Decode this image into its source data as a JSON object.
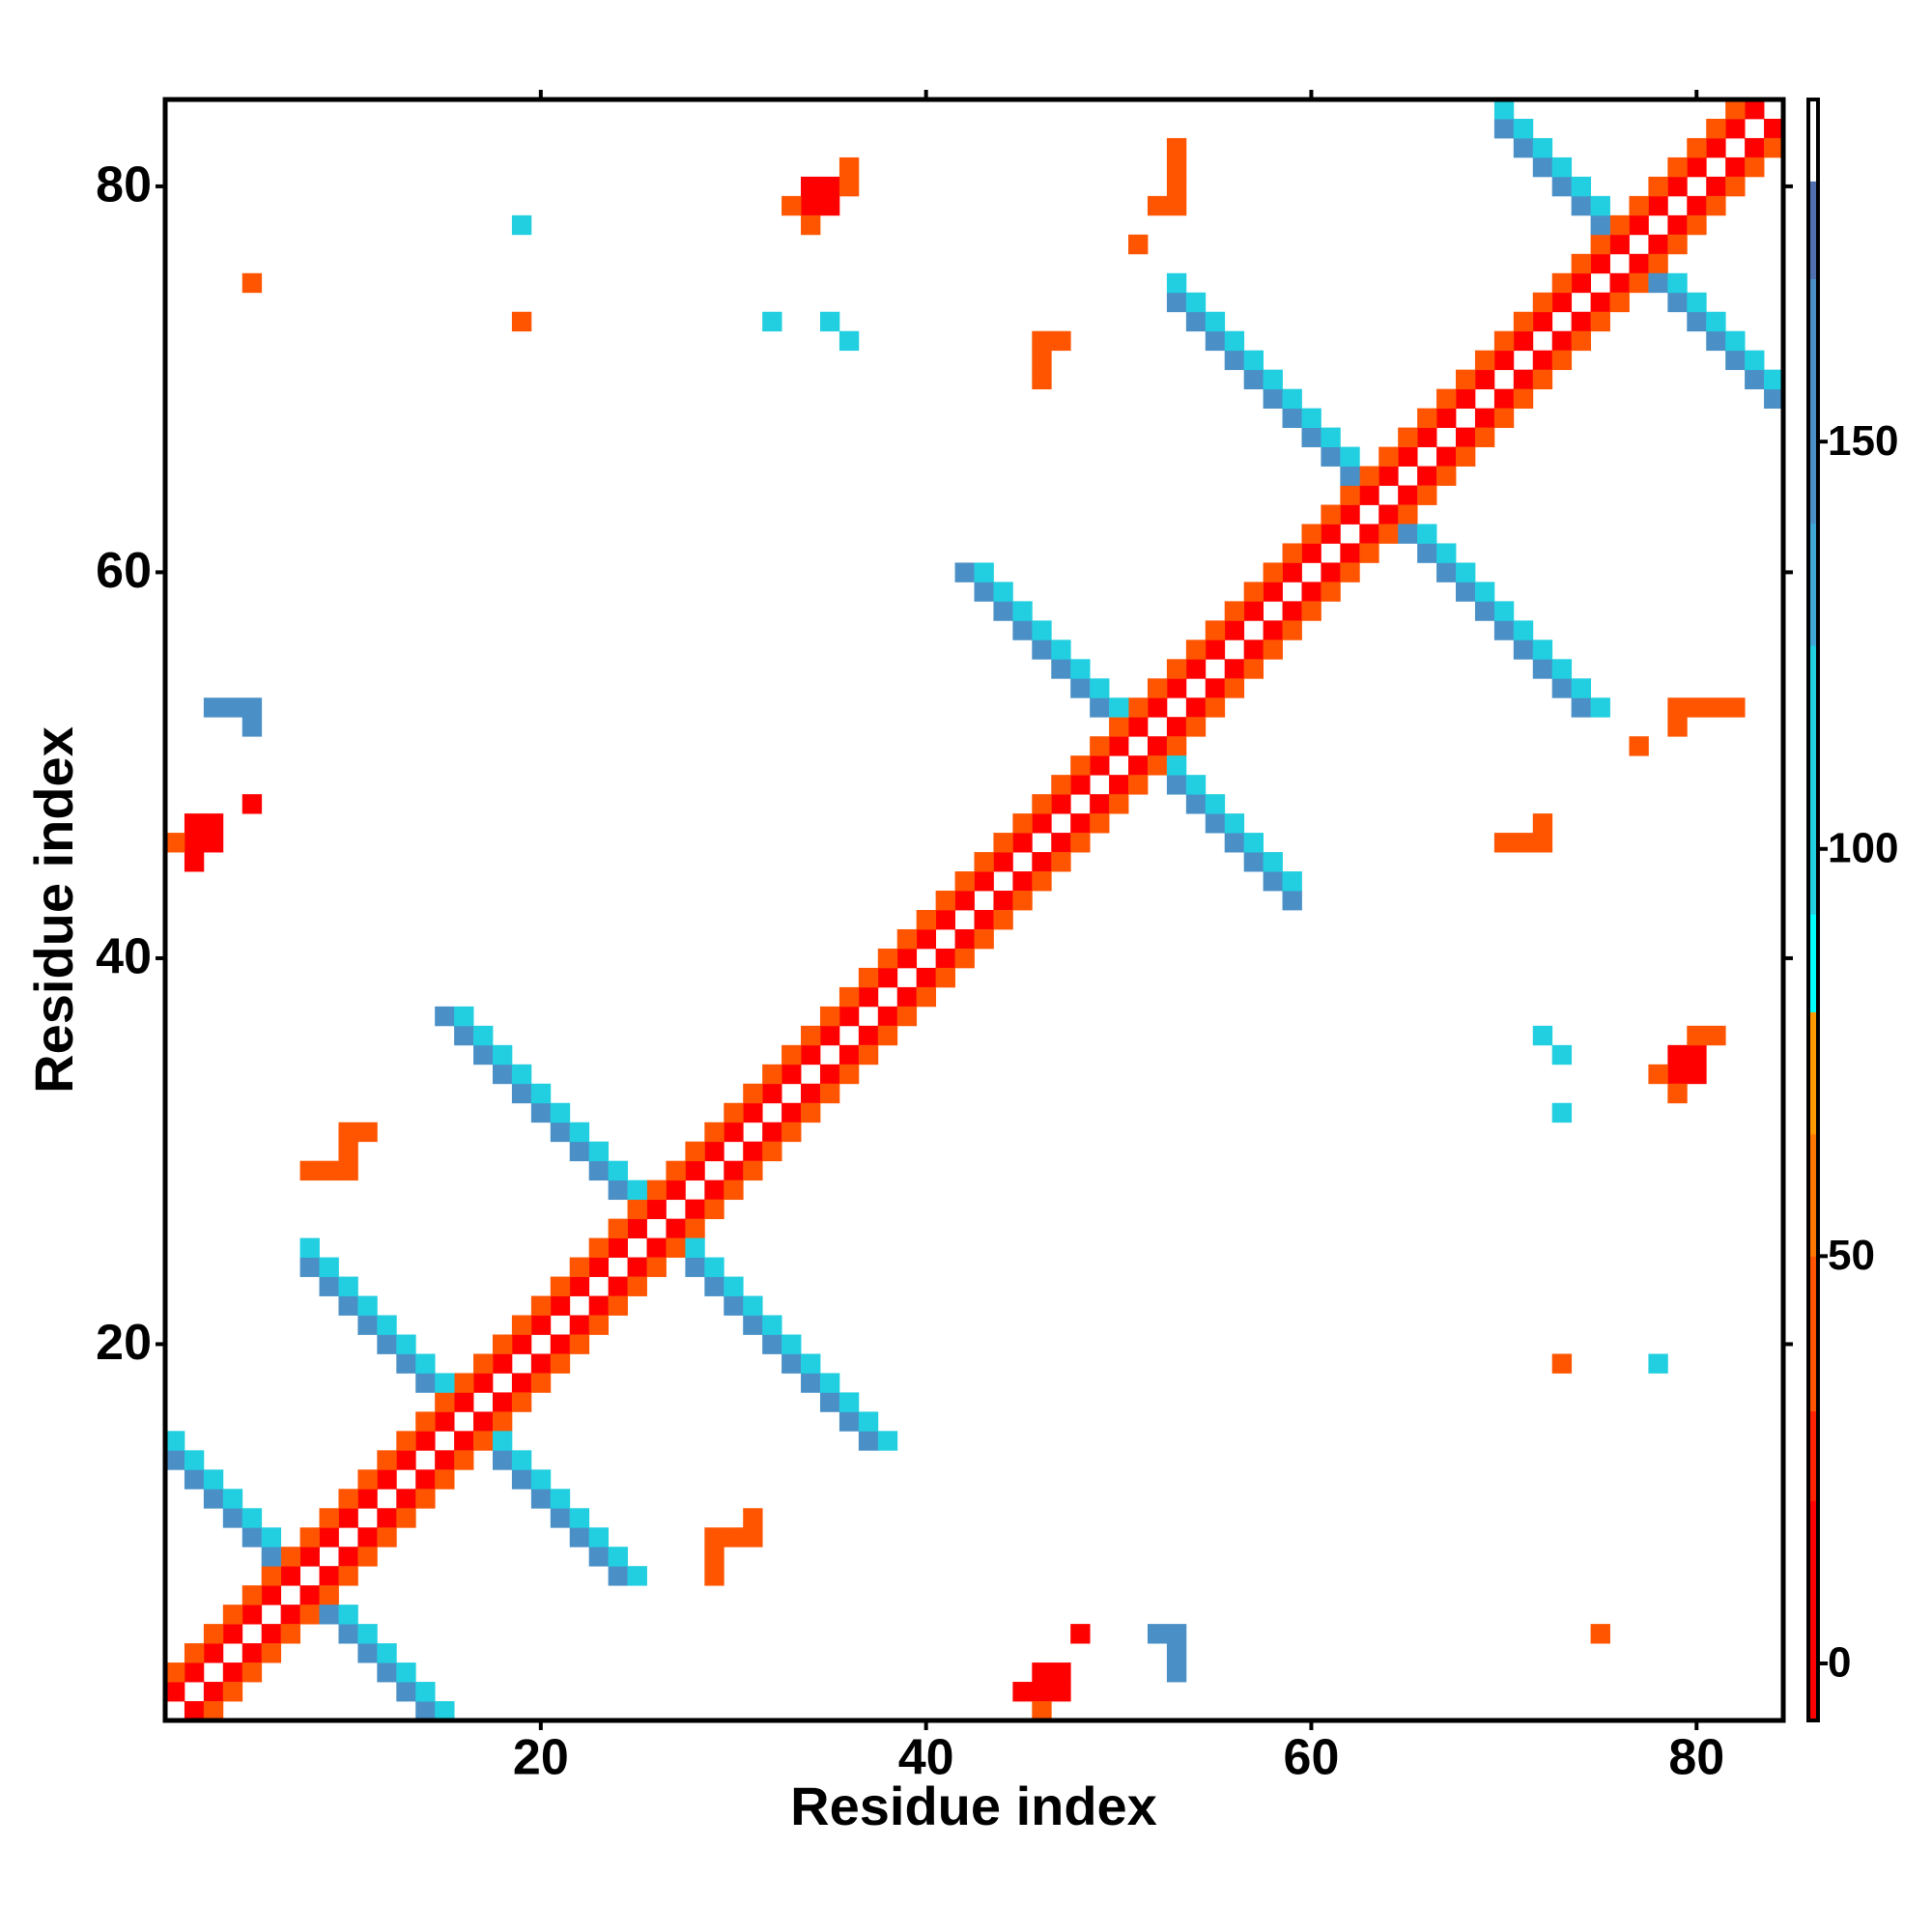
{
  "chart_data": {
    "type": "heatmap",
    "xlabel": "Residue index",
    "ylabel": "Residue index",
    "xlim": [
      0.5,
      84.5
    ],
    "ylim": [
      0.5,
      84.5
    ],
    "xticks": [
      20,
      40,
      60,
      80
    ],
    "yticks": [
      20,
      40,
      60,
      80
    ],
    "clim": [
      -7,
      192
    ],
    "cticks": [
      0,
      50,
      100,
      150
    ],
    "colorscale": [
      [
        -7,
        "#ff0000"
      ],
      [
        20,
        "#ff2200"
      ],
      [
        31,
        "#ff5500"
      ],
      [
        50,
        "#ff7700"
      ],
      [
        65,
        "#ff9900"
      ],
      [
        80,
        "#00ffff"
      ],
      [
        92,
        "#22cfe0"
      ],
      [
        125,
        "#3fa6d6"
      ],
      [
        140,
        "#4a90c6"
      ],
      [
        170,
        "#4f6fae"
      ],
      [
        182,
        "#ffffff"
      ]
    ],
    "cells": [
      {
        "value": 10,
        "x": [
          1,
          2,
          3,
          4,
          5,
          6,
          7,
          8,
          9,
          10,
          11,
          12,
          13,
          14,
          15,
          16,
          17,
          18,
          19,
          20,
          21,
          22,
          23,
          24,
          25,
          26,
          27,
          28,
          29,
          30,
          31,
          32,
          33,
          34,
          35,
          36,
          37,
          38,
          39,
          40,
          41,
          42,
          43,
          44,
          45,
          46,
          47,
          48,
          49,
          50,
          51,
          52,
          53,
          54,
          55,
          56,
          57,
          58,
          59,
          60,
          61,
          62,
          63,
          64,
          65,
          66,
          67,
          68,
          69,
          70,
          71,
          72,
          73,
          74,
          75,
          76,
          77,
          78,
          79,
          80,
          81,
          82,
          83,
          2,
          3,
          4,
          5,
          6,
          7,
          8,
          9,
          10,
          11,
          12,
          13,
          14,
          15,
          16,
          17,
          18,
          19,
          20,
          21,
          22,
          23,
          24,
          25,
          26,
          27,
          28,
          29,
          30,
          31,
          32,
          33,
          34,
          35,
          36,
          37,
          38,
          39,
          40,
          41,
          42,
          43,
          44,
          45,
          46,
          47,
          48,
          49,
          50,
          51,
          52,
          53,
          54,
          55,
          56,
          57,
          58,
          59,
          60,
          61,
          62,
          63,
          64,
          65,
          66,
          67,
          68,
          69,
          70,
          71,
          72,
          73,
          74,
          75,
          76,
          77,
          78,
          79,
          80,
          81,
          82,
          83,
          84,
          45,
          46,
          47,
          46,
          47,
          48,
          2,
          2,
          2,
          3,
          3,
          5,
          79,
          80,
          79,
          80,
          34,
          34,
          35,
          35
        ],
        "y": [
          2,
          3,
          4,
          5,
          6,
          7,
          8,
          9,
          10,
          11,
          12,
          13,
          14,
          15,
          16,
          17,
          18,
          19,
          20,
          21,
          22,
          23,
          24,
          25,
          26,
          27,
          28,
          29,
          30,
          31,
          32,
          33,
          34,
          35,
          36,
          37,
          38,
          39,
          40,
          41,
          42,
          43,
          44,
          45,
          46,
          47,
          48,
          49,
          50,
          51,
          52,
          53,
          54,
          55,
          56,
          57,
          58,
          59,
          60,
          61,
          62,
          63,
          64,
          65,
          66,
          67,
          68,
          69,
          70,
          71,
          72,
          73,
          74,
          75,
          76,
          77,
          78,
          79,
          80,
          81,
          82,
          83,
          84,
          1,
          2,
          3,
          4,
          5,
          6,
          7,
          8,
          9,
          10,
          11,
          12,
          13,
          14,
          15,
          16,
          17,
          18,
          19,
          20,
          21,
          22,
          23,
          24,
          25,
          26,
          27,
          28,
          29,
          30,
          31,
          32,
          33,
          34,
          35,
          36,
          37,
          38,
          39,
          40,
          41,
          42,
          43,
          44,
          45,
          46,
          47,
          48,
          49,
          50,
          51,
          52,
          53,
          54,
          55,
          56,
          57,
          58,
          59,
          60,
          61,
          62,
          63,
          64,
          65,
          66,
          67,
          68,
          69,
          70,
          71,
          72,
          73,
          74,
          75,
          76,
          77,
          78,
          79,
          80,
          81,
          82,
          83,
          2,
          2,
          2,
          3,
          3,
          5,
          45,
          46,
          47,
          46,
          47,
          48,
          34,
          34,
          35,
          35,
          79,
          80,
          79,
          80
        ]
      },
      {
        "value": 45,
        "x": [
          1,
          2,
          3,
          4,
          5,
          6,
          7,
          8,
          9,
          10,
          11,
          12,
          13,
          14,
          15,
          16,
          17,
          18,
          19,
          20,
          21,
          22,
          23,
          24,
          25,
          26,
          27,
          28,
          29,
          30,
          31,
          32,
          33,
          34,
          35,
          36,
          37,
          38,
          39,
          40,
          41,
          42,
          43,
          44,
          45,
          46,
          47,
          48,
          49,
          50,
          51,
          52,
          53,
          54,
          55,
          56,
          57,
          58,
          59,
          60,
          61,
          62,
          63,
          64,
          65,
          66,
          67,
          68,
          69,
          70,
          71,
          72,
          73,
          74,
          75,
          76,
          77,
          78,
          79,
          80,
          81,
          82,
          3,
          4,
          5,
          6,
          7,
          8,
          9,
          10,
          11,
          12,
          13,
          14,
          15,
          16,
          17,
          18,
          19,
          20,
          21,
          22,
          23,
          24,
          25,
          26,
          27,
          28,
          29,
          30,
          31,
          32,
          33,
          34,
          35,
          36,
          37,
          38,
          39,
          40,
          41,
          42,
          43,
          44,
          45,
          46,
          47,
          48,
          49,
          50,
          51,
          52,
          53,
          54,
          55,
          56,
          57,
          58,
          59,
          60,
          61,
          62,
          63,
          64,
          65,
          66,
          67,
          68,
          69,
          70,
          71,
          72,
          73,
          74,
          75,
          76,
          77,
          78,
          79,
          80,
          81,
          82,
          83,
          84,
          46,
          1,
          78,
          34,
          80,
          36,
          81,
          36,
          79,
          33,
          73,
          19,
          75,
          5,
          29,
          8,
          29,
          9,
          29,
          10,
          30,
          10,
          31,
          10,
          31,
          11,
          70,
          46,
          71,
          46,
          72,
          46,
          72,
          47,
          79,
          52,
          79,
          53,
          80,
          53,
          81,
          53,
          82,
          53,
          77,
          51
        ],
        "y": [
          3,
          4,
          5,
          6,
          7,
          8,
          9,
          10,
          11,
          12,
          13,
          14,
          15,
          16,
          17,
          18,
          19,
          20,
          21,
          22,
          23,
          24,
          25,
          26,
          27,
          28,
          29,
          30,
          31,
          32,
          33,
          34,
          35,
          36,
          37,
          38,
          39,
          40,
          41,
          42,
          43,
          44,
          45,
          46,
          47,
          48,
          49,
          50,
          51,
          52,
          53,
          54,
          55,
          56,
          57,
          58,
          59,
          60,
          61,
          62,
          63,
          64,
          65,
          66,
          67,
          68,
          69,
          70,
          71,
          72,
          73,
          74,
          75,
          76,
          77,
          78,
          79,
          80,
          81,
          82,
          83,
          84,
          1,
          2,
          3,
          4,
          5,
          6,
          7,
          8,
          9,
          10,
          11,
          12,
          13,
          14,
          15,
          16,
          17,
          18,
          19,
          20,
          21,
          22,
          23,
          24,
          25,
          26,
          27,
          28,
          29,
          30,
          31,
          32,
          33,
          34,
          35,
          36,
          37,
          38,
          39,
          40,
          41,
          42,
          43,
          44,
          45,
          46,
          47,
          48,
          49,
          50,
          51,
          52,
          53,
          54,
          55,
          56,
          57,
          58,
          59,
          60,
          61,
          62,
          63,
          64,
          65,
          66,
          67,
          68,
          69,
          70,
          71,
          72,
          73,
          74,
          75,
          76,
          77,
          78,
          79,
          80,
          81,
          82,
          1,
          46,
          34,
          78,
          36,
          80,
          36,
          81,
          33,
          79,
          19,
          73,
          5,
          75,
          8,
          29,
          9,
          29,
          10,
          29,
          10,
          30,
          10,
          31,
          11,
          31,
          46,
          70,
          46,
          71,
          46,
          72,
          47,
          72,
          52,
          79,
          53,
          79,
          53,
          80,
          53,
          81,
          53,
          82,
          51,
          77
        ]
      },
      {
        "value": 145,
        "x": [
          1,
          2,
          3,
          4,
          5,
          6,
          9,
          10,
          11,
          12,
          13,
          14,
          8,
          9,
          10,
          11,
          12,
          13,
          14,
          18,
          19,
          20,
          21,
          22,
          23,
          24,
          15,
          16,
          17,
          18,
          19,
          20,
          21,
          22,
          23,
          24,
          28,
          29,
          30,
          31,
          32,
          33,
          34,
          35,
          36,
          37,
          42,
          43,
          44,
          45,
          46,
          47,
          48,
          49,
          53,
          54,
          55,
          56,
          57,
          58,
          59,
          53,
          54,
          55,
          56,
          57,
          58,
          59,
          60,
          61,
          62,
          65,
          66,
          67,
          68,
          69,
          70,
          71,
          72,
          73,
          74,
          70,
          71,
          72,
          73,
          74,
          75,
          78,
          79,
          80,
          81,
          82,
          83,
          84,
          52,
          53,
          53,
          53,
          5,
          5,
          4,
          3
        ],
        "y": [
          14,
          13,
          12,
          11,
          10,
          9,
          6,
          5,
          4,
          3,
          2,
          1,
          24,
          23,
          22,
          21,
          20,
          19,
          18,
          14,
          13,
          12,
          11,
          10,
          9,
          8,
          37,
          36,
          35,
          34,
          33,
          32,
          31,
          30,
          29,
          28,
          24,
          23,
          22,
          21,
          20,
          19,
          18,
          17,
          16,
          15,
          60,
          59,
          58,
          57,
          56,
          55,
          54,
          53,
          49,
          48,
          47,
          46,
          45,
          44,
          43,
          74,
          73,
          72,
          71,
          70,
          69,
          68,
          67,
          66,
          65,
          62,
          61,
          60,
          59,
          58,
          57,
          56,
          55,
          54,
          53,
          83,
          82,
          81,
          80,
          79,
          78,
          75,
          74,
          73,
          72,
          71,
          70,
          69,
          5,
          5,
          4,
          3,
          52,
          53,
          53,
          53
        ]
      },
      {
        "value": 110,
        "x": [
          1,
          2,
          3,
          4,
          5,
          6,
          10,
          11,
          12,
          13,
          14,
          15,
          8,
          9,
          10,
          11,
          12,
          13,
          14,
          15,
          18,
          19,
          20,
          21,
          22,
          23,
          24,
          25,
          16,
          17,
          18,
          19,
          20,
          21,
          22,
          23,
          24,
          25,
          28,
          29,
          30,
          31,
          32,
          33,
          34,
          35,
          36,
          37,
          38,
          43,
          44,
          45,
          46,
          47,
          48,
          49,
          50,
          53,
          54,
          55,
          56,
          57,
          58,
          59,
          53,
          54,
          55,
          56,
          57,
          58,
          59,
          60,
          61,
          62,
          66,
          67,
          68,
          69,
          70,
          71,
          72,
          73,
          74,
          75,
          70,
          71,
          72,
          73,
          74,
          75,
          79,
          80,
          81,
          82,
          83,
          84,
          72,
          36,
          73,
          35,
          73,
          32,
          78,
          19
        ],
        "y": [
          15,
          14,
          13,
          12,
          11,
          10,
          6,
          5,
          4,
          3,
          2,
          1,
          25,
          24,
          23,
          22,
          21,
          20,
          19,
          18,
          15,
          14,
          13,
          12,
          11,
          10,
          9,
          8,
          37,
          36,
          35,
          34,
          33,
          32,
          31,
          30,
          29,
          28,
          25,
          24,
          23,
          22,
          21,
          20,
          19,
          18,
          17,
          16,
          15,
          60,
          59,
          58,
          57,
          56,
          55,
          54,
          53,
          50,
          49,
          48,
          47,
          46,
          45,
          44,
          75,
          74,
          73,
          72,
          71,
          70,
          69,
          68,
          67,
          66,
          62,
          61,
          60,
          59,
          58,
          57,
          56,
          55,
          54,
          53,
          84,
          83,
          82,
          81,
          80,
          79,
          75,
          74,
          73,
          72,
          71,
          70,
          36,
          72,
          35,
          73,
          32,
          73,
          19,
          78
        ]
      }
    ]
  }
}
